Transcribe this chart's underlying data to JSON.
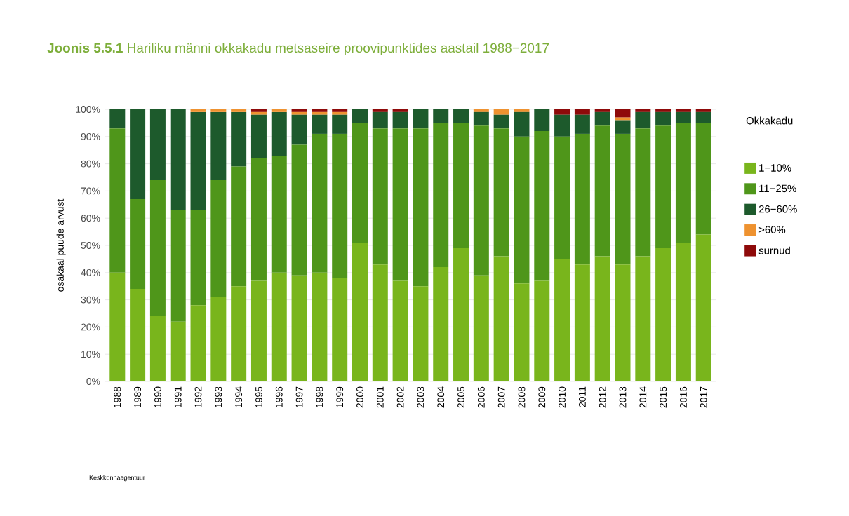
{
  "chart_data": {
    "type": "bar",
    "stacked": true,
    "title": "**Joonis 5.5.1**   Hariliku männi okkakadu metsaseire proovipunktides aastail 1988−2017",
    "ylabel": "osakaal puude arvust",
    "legend_title": "Okkakadu",
    "categories": [
      "1988",
      "1989",
      "1990",
      "1991",
      "1992",
      "1993",
      "1994",
      "1995",
      "1996",
      "1997",
      "1998",
      "1999",
      "2000",
      "2001",
      "2002",
      "2003",
      "2004",
      "2005",
      "2006",
      "2007",
      "2008",
      "2009",
      "2010",
      "2011",
      "2012",
      "2013",
      "2014",
      "2015",
      "2016",
      "2017"
    ],
    "series": [
      {
        "name": "1−10%",
        "color": "#79b51c",
        "values": [
          40,
          34,
          24,
          22,
          28,
          31,
          35,
          37,
          40,
          39,
          40,
          38,
          51,
          43,
          37,
          35,
          42,
          49,
          39,
          46,
          36,
          37,
          45,
          43,
          46,
          43,
          46,
          49,
          51,
          54
        ]
      },
      {
        "name": "11−25%",
        "color": "#4f961a",
        "values": [
          53,
          33,
          50,
          41,
          35,
          43,
          44,
          45,
          43,
          48,
          51,
          53,
          44,
          50,
          56,
          58,
          53,
          46,
          55,
          47,
          54,
          55,
          45,
          48,
          48,
          48,
          47,
          45,
          44,
          41
        ]
      },
      {
        "name": "26−60%",
        "color": "#1d5a2c",
        "values": [
          7,
          33,
          26,
          37,
          36,
          25,
          20,
          16,
          16,
          11,
          7,
          7,
          5,
          6,
          6,
          7,
          5,
          5,
          5,
          5,
          9,
          8,
          8,
          7,
          5,
          5,
          6,
          5,
          4,
          4
        ]
      },
      {
        "name": ">60%",
        "color": "#ee9230",
        "values": [
          0,
          0,
          0,
          0,
          1,
          1,
          1,
          1,
          1,
          1,
          1,
          1,
          0,
          0,
          0,
          0,
          0,
          0,
          1,
          2,
          1,
          0,
          0,
          0,
          0,
          1,
          0,
          0,
          0,
          0
        ]
      },
      {
        "name": "surnud",
        "color": "#8e0a0a",
        "values": [
          0,
          0,
          0,
          0,
          0,
          0,
          0,
          1,
          0,
          1,
          1,
          1,
          0,
          1,
          1,
          0,
          0,
          0,
          0,
          0,
          0,
          0,
          2,
          2,
          1,
          3,
          1,
          1,
          1,
          1
        ]
      }
    ],
    "ylim": [
      0,
      100
    ],
    "yticks": [
      {
        "value": 0,
        "label": "0%"
      },
      {
        "value": 10,
        "label": "10%"
      },
      {
        "value": 20,
        "label": "20%"
      },
      {
        "value": 30,
        "label": "30%"
      },
      {
        "value": 40,
        "label": "40%"
      },
      {
        "value": 50,
        "label": "50%"
      },
      {
        "value": 60,
        "label": "60%"
      },
      {
        "value": 70,
        "label": "70%"
      },
      {
        "value": 80,
        "label": "80%"
      },
      {
        "value": 90,
        "label": "90%"
      },
      {
        "value": 100,
        "label": "100%"
      }
    ],
    "grid": "y",
    "legend": "right",
    "annotations": [
      "Keskkonnaagentuur"
    ]
  }
}
